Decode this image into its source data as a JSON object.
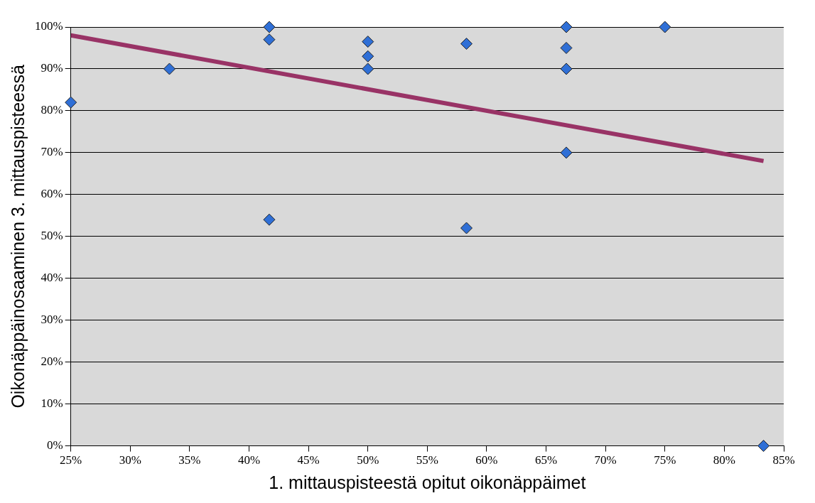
{
  "chart_data": {
    "type": "scatter",
    "xlabel": "1. mittauspisteestä opitut oikonäppäimet",
    "ylabel": "Oikonäppäinosaaminen 3. mittauspisteessä",
    "xlim": [
      25,
      85
    ],
    "xticks": [
      {
        "value": 25,
        "label": "25%"
      },
      {
        "value": 30,
        "label": "30%"
      },
      {
        "value": 35,
        "label": "35%"
      },
      {
        "value": 40,
        "label": "40%"
      },
      {
        "value": 45,
        "label": "45%"
      },
      {
        "value": 50,
        "label": "50%"
      },
      {
        "value": 55,
        "label": "55%"
      },
      {
        "value": 60,
        "label": "60%"
      },
      {
        "value": 65,
        "label": "65%"
      },
      {
        "value": 70,
        "label": "70%"
      },
      {
        "value": 75,
        "label": "75%"
      },
      {
        "value": 80,
        "label": "80%"
      },
      {
        "value": 85,
        "label": "85%"
      }
    ],
    "ylim": [
      0,
      100
    ],
    "yticks": [
      {
        "value": 0,
        "label": "0%"
      },
      {
        "value": 10,
        "label": "10%"
      },
      {
        "value": 20,
        "label": "20%"
      },
      {
        "value": 30,
        "label": "30%"
      },
      {
        "value": 40,
        "label": "40%"
      },
      {
        "value": 50,
        "label": "50%"
      },
      {
        "value": 60,
        "label": "60%"
      },
      {
        "value": 70,
        "label": "70%"
      },
      {
        "value": 80,
        "label": "80%"
      },
      {
        "value": 90,
        "label": "90%"
      },
      {
        "value": 100,
        "label": "100%"
      }
    ],
    "grid": "y",
    "legend": false,
    "marker": "diamond",
    "series": [
      {
        "color": "#2f6fd6",
        "x": [
          25,
          33.3,
          41.7,
          41.7,
          41.7,
          50,
          50,
          50,
          58.3,
          58.3,
          66.7,
          66.7,
          66.7,
          66.7,
          75,
          83.3
        ],
        "values": [
          82,
          90,
          100,
          97,
          54,
          96.5,
          93,
          90,
          96,
          52,
          100,
          95,
          90,
          70,
          100,
          0
        ]
      },
      {
        "type": "line",
        "color": "#993366",
        "marker": "none",
        "x": [
          25,
          83.3
        ],
        "values": [
          98,
          68
        ]
      }
    ]
  }
}
